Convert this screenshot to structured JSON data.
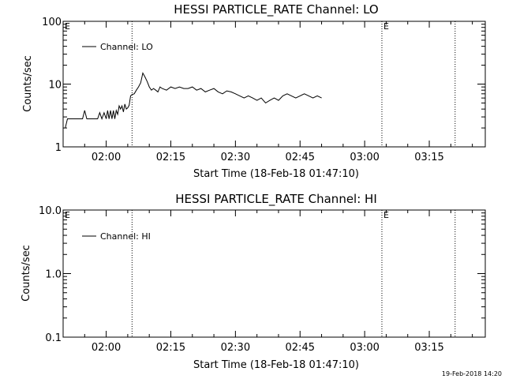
{
  "footer": {
    "timestamp": "19-Feb-2018 14:20"
  },
  "chart_data": [
    {
      "type": "line",
      "title": "HESSI PARTICLE_RATE Channel: LO",
      "xlabel": "Start Time (18-Feb-18 01:47:10)",
      "ylabel": "Counts/sec",
      "xlim": [
        "01:50",
        "03:28"
      ],
      "ylim": [
        1,
        100
      ],
      "yscale": "log",
      "xtick_labels": [
        "02:00",
        "02:15",
        "02:30",
        "02:45",
        "03:00",
        "03:15"
      ],
      "ytick_labels": [
        "1",
        "10",
        "100"
      ],
      "legend": {
        "label": "Channel: LO",
        "position": "top-left"
      },
      "markers": [
        {
          "label": "E",
          "x": "01:50"
        },
        {
          "label": "E",
          "x": "03:04"
        }
      ],
      "vlines": [
        "02:06",
        "03:04",
        "03:21"
      ],
      "series": [
        {
          "name": "Channel: LO",
          "x": [
            "01:50:30",
            "01:51",
            "01:51:30",
            "01:52",
            "01:53",
            "01:54",
            "01:54:30",
            "01:55",
            "01:55:30",
            "01:56",
            "01:57",
            "01:58",
            "01:58:30",
            "01:59",
            "01:59:30",
            "02:00",
            "02:00:20",
            "02:00:40",
            "02:01",
            "02:01:20",
            "02:01:40",
            "02:02",
            "02:02:20",
            "02:02:40",
            "02:03",
            "02:03:20",
            "02:03:40",
            "02:04",
            "02:04:20",
            "02:04:40",
            "02:05",
            "02:05:20",
            "02:05:40",
            "02:06",
            "02:06:30",
            "02:07",
            "02:07:30",
            "02:08",
            "02:08:30",
            "02:09",
            "02:09:30",
            "02:10",
            "02:10:30",
            "02:11",
            "02:11:30",
            "02:12",
            "02:12:30",
            "02:13",
            "02:14",
            "02:15",
            "02:16",
            "02:17",
            "02:18",
            "02:19",
            "02:20",
            "02:21",
            "02:22",
            "02:23",
            "02:24",
            "02:25",
            "02:26",
            "02:27",
            "02:28",
            "02:29",
            "02:30",
            "02:31",
            "02:32",
            "02:33",
            "02:34",
            "02:35",
            "02:36",
            "02:37",
            "02:38",
            "02:39",
            "02:40",
            "02:41",
            "02:42",
            "02:43",
            "02:44",
            "02:45",
            "02:46",
            "02:47",
            "02:48",
            "02:49",
            "02:50"
          ],
          "y": [
            2.0,
            2.8,
            2.8,
            2.8,
            2.8,
            2.8,
            2.8,
            3.8,
            2.8,
            2.8,
            2.8,
            2.8,
            3.5,
            2.8,
            3.5,
            2.8,
            3.8,
            2.8,
            3.8,
            2.8,
            3.8,
            2.8,
            3.8,
            3.3,
            4.5,
            4.0,
            4.5,
            3.6,
            4.8,
            4.0,
            4.2,
            4.6,
            6.5,
            6.8,
            7.0,
            8.0,
            9.0,
            10.5,
            15.0,
            13.0,
            11.0,
            9.0,
            8.0,
            8.5,
            8.0,
            7.5,
            9.0,
            8.5,
            8.0,
            9.0,
            8.5,
            9.0,
            8.5,
            8.5,
            9.0,
            8.0,
            8.5,
            7.5,
            8.0,
            8.5,
            7.5,
            7.0,
            7.8,
            7.5,
            7.0,
            6.5,
            6.0,
            6.5,
            6.0,
            5.5,
            6.0,
            5.0,
            5.5,
            6.0,
            5.5,
            6.5,
            7.0,
            6.5,
            6.0,
            6.5,
            7.0,
            6.5,
            6.0,
            6.5,
            6.0
          ]
        }
      ]
    },
    {
      "type": "line",
      "title": "HESSI PARTICLE_RATE Channel: HI",
      "xlabel": "Start Time (18-Feb-18 01:47:10)",
      "ylabel": "Counts/sec",
      "xlim": [
        "01:50",
        "03:28"
      ],
      "ylim": [
        0.1,
        10.0
      ],
      "yscale": "log",
      "xtick_labels": [
        "02:00",
        "02:15",
        "02:30",
        "02:45",
        "03:00",
        "03:15"
      ],
      "ytick_labels": [
        "0.1",
        "1.0",
        "10.0"
      ],
      "legend": {
        "label": "Channel: HI",
        "position": "top-left"
      },
      "markers": [
        {
          "label": "E",
          "x": "01:50"
        },
        {
          "label": "E",
          "x": "03:04"
        }
      ],
      "vlines": [
        "02:06",
        "03:04",
        "03:21"
      ],
      "series": [
        {
          "name": "Channel: HI",
          "x": [],
          "y": []
        }
      ]
    }
  ]
}
